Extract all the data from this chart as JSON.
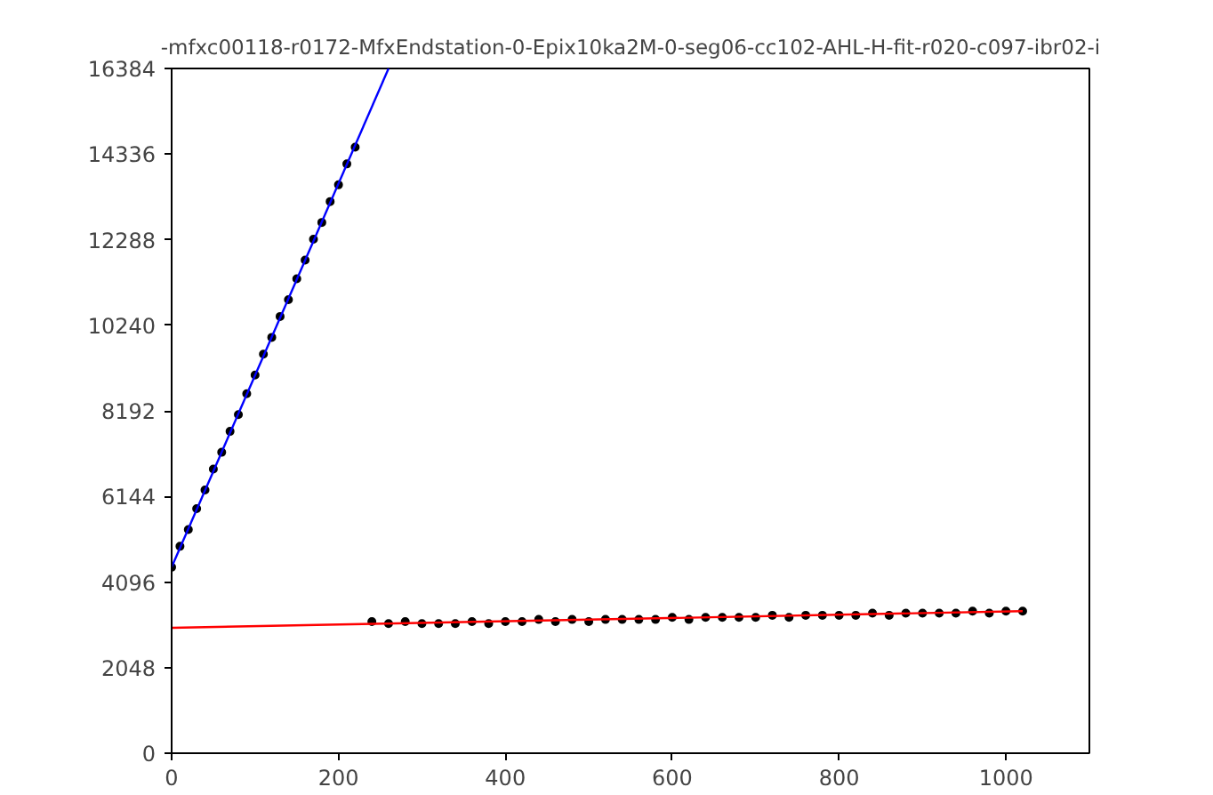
{
  "chart_data": {
    "type": "scatter",
    "title": "-mfxc00118-r0172-MfxEndstation-0-Epix10ka2M-0-seg06-cc102-AHL-H-fit-r020-c097-ibr02-i",
    "xlim": [
      0,
      1100
    ],
    "xticks": [
      0,
      200,
      400,
      600,
      800,
      1000
    ],
    "ylim": [
      0,
      16384
    ],
    "yticks": [
      0,
      2048,
      4096,
      6144,
      8192,
      10240,
      12288,
      14336,
      16384
    ],
    "grid": false,
    "series": [
      {
        "color": "#000000",
        "marker": "circle",
        "x": [
          0,
          10,
          20,
          30,
          40,
          50,
          60,
          70,
          80,
          90,
          100,
          110,
          120,
          130,
          140,
          150,
          160,
          170,
          180,
          190,
          200,
          210,
          220
        ],
        "values": [
          4450,
          4950,
          5350,
          5850,
          6300,
          6800,
          7200,
          7700,
          8100,
          8600,
          9050,
          9550,
          9950,
          10450,
          10850,
          11350,
          11800,
          12300,
          12700,
          13200,
          13600,
          14100,
          14500
        ]
      },
      {
        "color": "#000000",
        "marker": "circle",
        "x": [
          240,
          260,
          280,
          300,
          320,
          340,
          360,
          380,
          400,
          420,
          440,
          460,
          480,
          500,
          520,
          540,
          560,
          580,
          600,
          620,
          640,
          660,
          680,
          700,
          720,
          740,
          760,
          780,
          800,
          820,
          840,
          860,
          880,
          900,
          920,
          940,
          960,
          980,
          1000,
          1020
        ],
        "values": [
          3150,
          3100,
          3150,
          3100,
          3100,
          3100,
          3150,
          3100,
          3150,
          3150,
          3200,
          3150,
          3200,
          3150,
          3200,
          3200,
          3200,
          3200,
          3250,
          3200,
          3250,
          3250,
          3250,
          3250,
          3300,
          3250,
          3300,
          3300,
          3300,
          3300,
          3350,
          3300,
          3350,
          3350,
          3350,
          3350,
          3400,
          3350,
          3400,
          3400
        ]
      },
      {
        "type": "line",
        "color": "#0000ff",
        "line_style": "solid",
        "x": [
          0,
          260
        ],
        "values": [
          4450,
          16384
        ]
      },
      {
        "type": "line",
        "color": "#ff0000",
        "line_style": "solid",
        "x": [
          0,
          1020
        ],
        "values": [
          3000,
          3400
        ]
      }
    ]
  }
}
